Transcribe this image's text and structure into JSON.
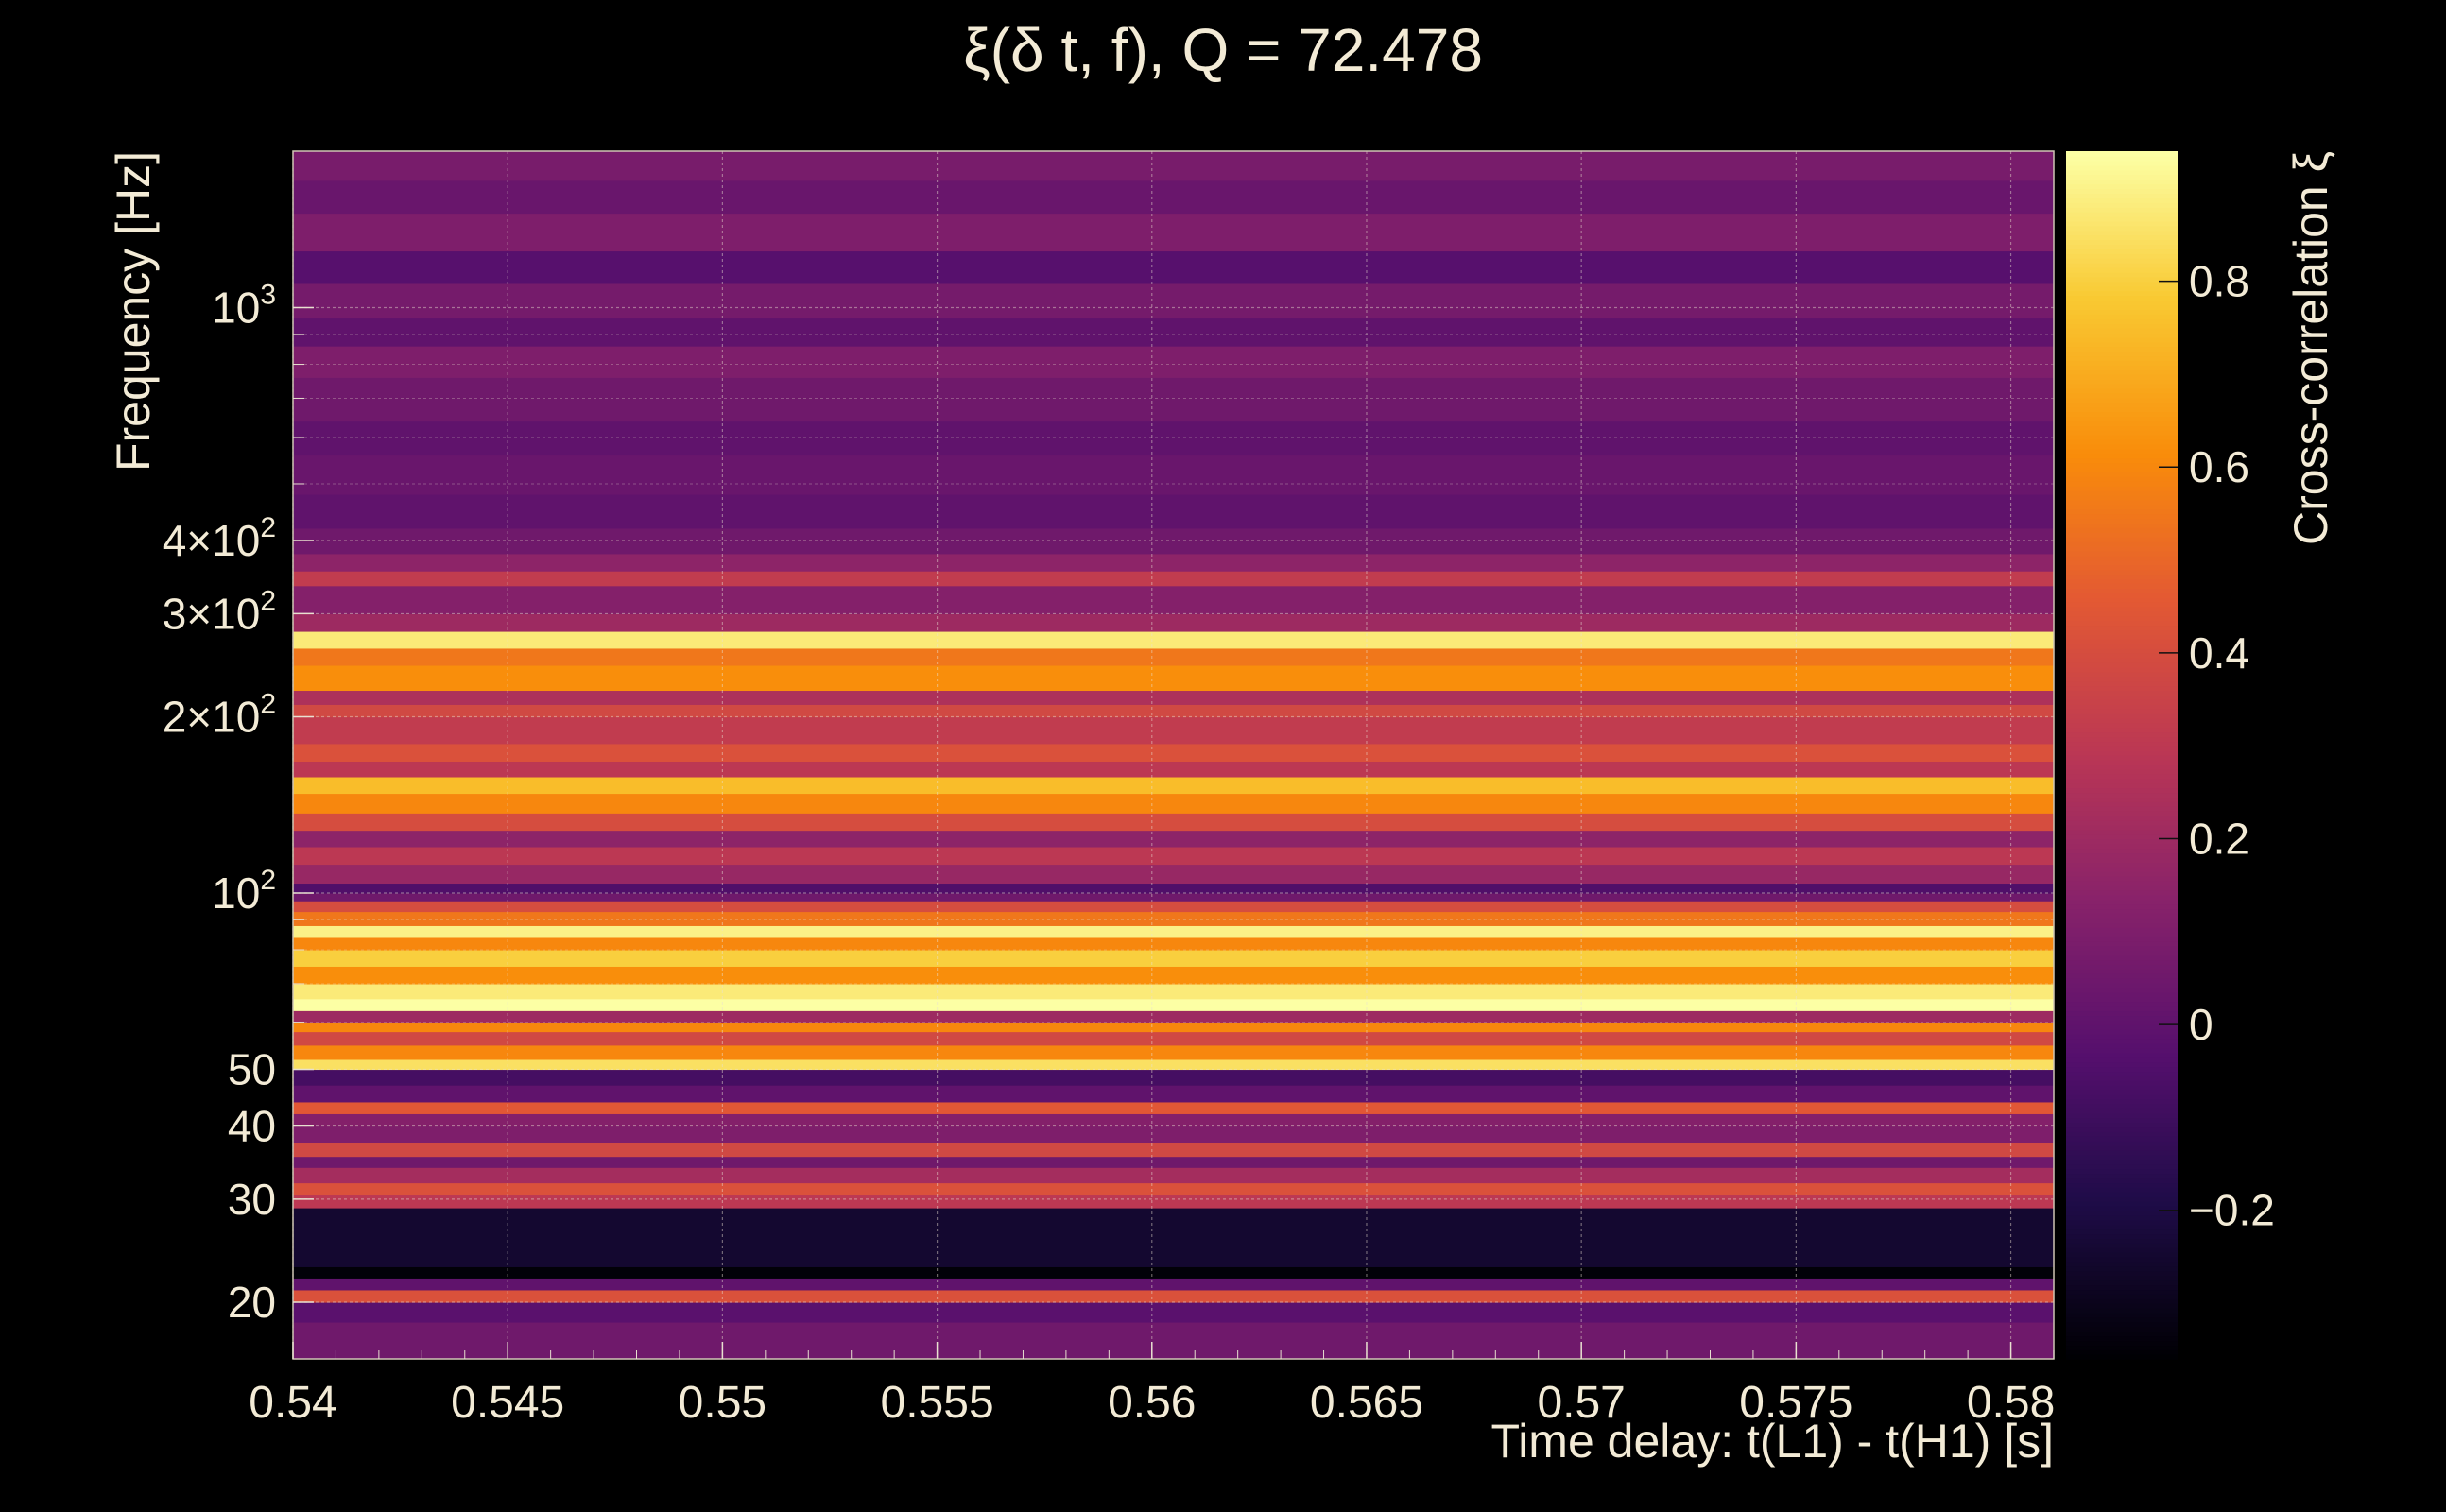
{
  "chart_data": {
    "type": "heatmap",
    "title": "ξ(δ t, f), Q = 72.478",
    "xlabel": "Time delay: t(L1) - t(H1) [s]",
    "ylabel": "Frequency [Hz]",
    "colorbar_label": "Cross-correlation ξ",
    "xlim": [
      0.54,
      0.581
    ],
    "ylim": [
      16,
      1850
    ],
    "y_scale": "log",
    "x_ticks": [
      {
        "value": 0.54,
        "label": "0.54"
      },
      {
        "value": 0.545,
        "label": "0.545"
      },
      {
        "value": 0.55,
        "label": "0.55"
      },
      {
        "value": 0.555,
        "label": "0.555"
      },
      {
        "value": 0.56,
        "label": "0.56"
      },
      {
        "value": 0.565,
        "label": "0.565"
      },
      {
        "value": 0.57,
        "label": "0.57"
      },
      {
        "value": 0.575,
        "label": "0.575"
      },
      {
        "value": 0.58,
        "label": "0.58"
      }
    ],
    "y_ticks": [
      {
        "value": 20,
        "label": "20"
      },
      {
        "value": 30,
        "label": "30"
      },
      {
        "value": 40,
        "label": "40"
      },
      {
        "value": 50,
        "label": "50"
      },
      {
        "value": 100,
        "base": "10",
        "exp": "2"
      },
      {
        "value": 200,
        "mant": "2",
        "base": "10",
        "exp": "2"
      },
      {
        "value": 300,
        "mant": "3",
        "base": "10",
        "exp": "2"
      },
      {
        "value": 400,
        "mant": "4",
        "base": "10",
        "exp": "2"
      },
      {
        "value": 1000,
        "base": "10",
        "exp": "3"
      }
    ],
    "colorbar": {
      "range": [
        -0.36,
        0.94
      ],
      "ticks": [
        {
          "value": -0.2,
          "label": "−0.2"
        },
        {
          "value": 0,
          "label": "0"
        },
        {
          "value": 0.2,
          "label": "0.2"
        },
        {
          "value": 0.4,
          "label": "0.4"
        },
        {
          "value": 0.6,
          "label": "0.6"
        },
        {
          "value": 0.8,
          "label": "0.8"
        }
      ],
      "colormap": "inferno"
    },
    "grid": true,
    "frequency_bands": [
      {
        "f": [
          16,
          18.5
        ],
        "value": 0.05
      },
      {
        "f": [
          18.5,
          20
        ],
        "value": -0.02
      },
      {
        "f": [
          20,
          21
        ],
        "value": 0.42
      },
      {
        "f": [
          21,
          22
        ],
        "value": 0.0
      },
      {
        "f": [
          22,
          23
        ],
        "value": -0.35
      },
      {
        "f": [
          23,
          29
        ],
        "value": -0.25
      },
      {
        "f": [
          29,
          30.5
        ],
        "value": 0.3
      },
      {
        "f": [
          30.5,
          32
        ],
        "value": 0.42
      },
      {
        "f": [
          32,
          34
        ],
        "value": 0.22
      },
      {
        "f": [
          34,
          35.5
        ],
        "value": 0.05
      },
      {
        "f": [
          35.5,
          37.5
        ],
        "value": 0.38
      },
      {
        "f": [
          37.5,
          40
        ],
        "value": 0.1
      },
      {
        "f": [
          40,
          42
        ],
        "value": 0.12
      },
      {
        "f": [
          42,
          44
        ],
        "value": 0.45
      },
      {
        "f": [
          44,
          47
        ],
        "value": 0.0
      },
      {
        "f": [
          47,
          50
        ],
        "value": -0.08
      },
      {
        "f": [
          50,
          52
        ],
        "value": 0.85
      },
      {
        "f": [
          52,
          55
        ],
        "value": 0.6
      },
      {
        "f": [
          55,
          58
        ],
        "value": 0.38
      },
      {
        "f": [
          58,
          60
        ],
        "value": 0.6
      },
      {
        "f": [
          60,
          63
        ],
        "value": 0.2
      },
      {
        "f": [
          63,
          66
        ],
        "value": 0.94
      },
      {
        "f": [
          66,
          70
        ],
        "value": 0.88
      },
      {
        "f": [
          70,
          75
        ],
        "value": 0.62
      },
      {
        "f": [
          75,
          80
        ],
        "value": 0.8
      },
      {
        "f": [
          80,
          84
        ],
        "value": 0.6
      },
      {
        "f": [
          84,
          88
        ],
        "value": 0.9
      },
      {
        "f": [
          88,
          93
        ],
        "value": 0.55
      },
      {
        "f": [
          93,
          97
        ],
        "value": 0.4
      },
      {
        "f": [
          97,
          100
        ],
        "value": 0.05
      },
      {
        "f": [
          100,
          104
        ],
        "value": -0.05
      },
      {
        "f": [
          104,
          112
        ],
        "value": 0.18
      },
      {
        "f": [
          112,
          120
        ],
        "value": 0.3
      },
      {
        "f": [
          120,
          128
        ],
        "value": 0.15
      },
      {
        "f": [
          128,
          137
        ],
        "value": 0.4
      },
      {
        "f": [
          137,
          148
        ],
        "value": 0.6
      },
      {
        "f": [
          148,
          158
        ],
        "value": 0.75
      },
      {
        "f": [
          158,
          168
        ],
        "value": 0.3
      },
      {
        "f": [
          168,
          180
        ],
        "value": 0.42
      },
      {
        "f": [
          180,
          200
        ],
        "value": 0.32
      },
      {
        "f": [
          200,
          210
        ],
        "value": 0.38
      },
      {
        "f": [
          210,
          222
        ],
        "value": 0.25
      },
      {
        "f": [
          222,
          245
        ],
        "value": 0.62
      },
      {
        "f": [
          245,
          262
        ],
        "value": 0.55
      },
      {
        "f": [
          262,
          280
        ],
        "value": 0.88
      },
      {
        "f": [
          280,
          300
        ],
        "value": 0.2
      },
      {
        "f": [
          300,
          335
        ],
        "value": 0.12
      },
      {
        "f": [
          335,
          355
        ],
        "value": 0.32
      },
      {
        "f": [
          355,
          380
        ],
        "value": 0.15
      },
      {
        "f": [
          380,
          420
        ],
        "value": 0.05
      },
      {
        "f": [
          420,
          480
        ],
        "value": 0.0
      },
      {
        "f": [
          480,
          560
        ],
        "value": 0.03
      },
      {
        "f": [
          560,
          640
        ],
        "value": 0.0
      },
      {
        "f": [
          640,
          760
        ],
        "value": 0.05
      },
      {
        "f": [
          760,
          860
        ],
        "value": 0.1
      },
      {
        "f": [
          860,
          960
        ],
        "value": 0.0
      },
      {
        "f": [
          960,
          1100
        ],
        "value": 0.07
      },
      {
        "f": [
          1100,
          1250
        ],
        "value": -0.03
      },
      {
        "f": [
          1250,
          1450
        ],
        "value": 0.1
      },
      {
        "f": [
          1450,
          1650
        ],
        "value": 0.03
      },
      {
        "f": [
          1650,
          1850
        ],
        "value": 0.08
      }
    ]
  }
}
